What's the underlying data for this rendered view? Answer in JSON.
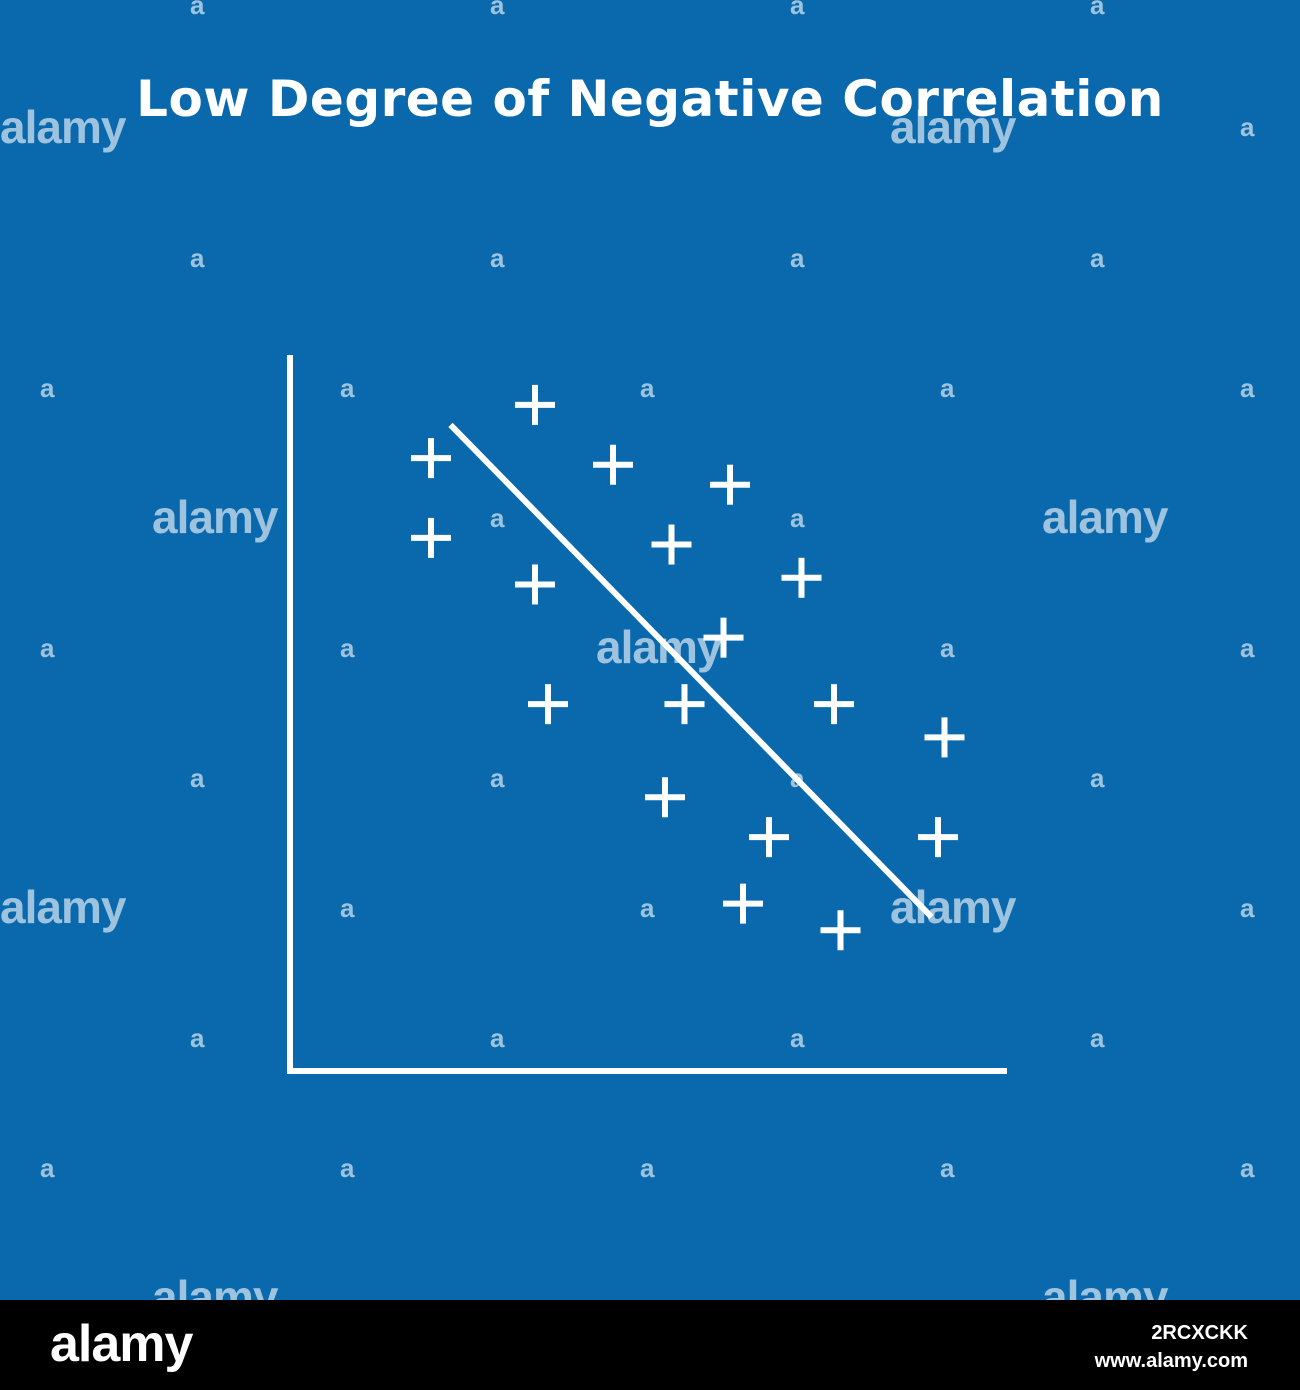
{
  "colors": {
    "background": "#0a69ad",
    "foreground": "#ffffff",
    "footer": "#000000"
  },
  "chart_data": {
    "type": "scatter",
    "title": "Low Degree of Negative Correlation",
    "xlabel": "",
    "ylabel": "",
    "xlim": [
      0,
      100
    ],
    "ylim": [
      0,
      100
    ],
    "grid": false,
    "marker": "plus",
    "points": [
      {
        "x": 14,
        "y": 86
      },
      {
        "x": 30,
        "y": 94
      },
      {
        "x": 42,
        "y": 85
      },
      {
        "x": 60,
        "y": 82
      },
      {
        "x": 14,
        "y": 74
      },
      {
        "x": 51,
        "y": 73
      },
      {
        "x": 30,
        "y": 67
      },
      {
        "x": 71,
        "y": 68
      },
      {
        "x": 59,
        "y": 59
      },
      {
        "x": 32,
        "y": 49
      },
      {
        "x": 53,
        "y": 49
      },
      {
        "x": 76,
        "y": 49
      },
      {
        "x": 93,
        "y": 44
      },
      {
        "x": 50,
        "y": 35
      },
      {
        "x": 66,
        "y": 29
      },
      {
        "x": 92,
        "y": 29
      },
      {
        "x": 62,
        "y": 19
      },
      {
        "x": 77,
        "y": 15
      }
    ],
    "trend_line": {
      "from": {
        "x": 17,
        "y": 91
      },
      "to": {
        "x": 91,
        "y": 17
      }
    }
  },
  "watermark": {
    "word": "alamy",
    "mark": "a"
  },
  "footer": {
    "brand": "alamy",
    "image_id": "2RCXCKK",
    "url": "www.alamy.com"
  }
}
